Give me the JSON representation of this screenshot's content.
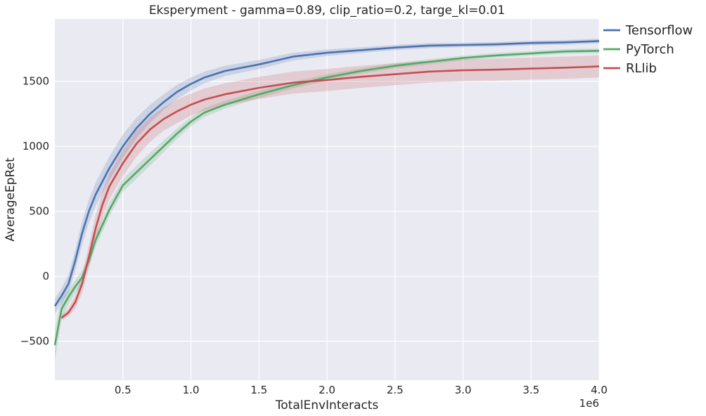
{
  "chart_data": {
    "type": "line",
    "title": "Eksperyment - gamma=0.89, clip_ratio=0.2, targe_kl=0.01",
    "xlabel": "TotalEnvInteracts",
    "ylabel": "AverageEpRet",
    "x_offset_label": "1e6",
    "xlim": [
      0,
      4.0
    ],
    "ylim": [
      -800,
      1980
    ],
    "x_ticks": [
      0.5,
      1.0,
      1.5,
      2.0,
      2.5,
      3.0,
      3.5,
      4.0
    ],
    "x_tick_labels": [
      "0.5",
      "1.0",
      "1.5",
      "2.0",
      "2.5",
      "3.0",
      "3.5",
      "4.0"
    ],
    "y_ticks": [
      -500,
      0,
      500,
      1000,
      1500
    ],
    "y_tick_labels": [
      "−500",
      "0",
      "500",
      "1000",
      "1500"
    ],
    "grid": true,
    "legend_position": "outside-top-right",
    "background_color": "#eaeaf2",
    "series": [
      {
        "name": "Tensorflow",
        "color": "#4c72b0",
        "x": [
          0,
          0.05,
          0.1,
          0.15,
          0.2,
          0.25,
          0.3,
          0.4,
          0.5,
          0.6,
          0.7,
          0.8,
          0.9,
          1.0,
          1.1,
          1.25,
          1.5,
          1.75,
          2.0,
          2.25,
          2.5,
          2.75,
          3.0,
          3.25,
          3.5,
          3.75,
          4.0
        ],
        "y": [
          -230,
          -150,
          -60,
          120,
          330,
          500,
          630,
          830,
          1000,
          1140,
          1250,
          1340,
          1420,
          1480,
          1530,
          1580,
          1630,
          1690,
          1720,
          1740,
          1760,
          1775,
          1780,
          1785,
          1795,
          1800,
          1810
        ],
        "band": [
          60,
          60,
          70,
          80,
          90,
          90,
          90,
          90,
          90,
          80,
          70,
          60,
          55,
          50,
          45,
          40,
          35,
          30,
          25,
          22,
          20,
          20,
          18,
          18,
          18,
          18,
          18
        ]
      },
      {
        "name": "PyTorch",
        "color": "#55a868",
        "x": [
          0,
          0.05,
          0.1,
          0.15,
          0.2,
          0.25,
          0.3,
          0.4,
          0.5,
          0.6,
          0.7,
          0.8,
          0.9,
          1.0,
          1.1,
          1.25,
          1.5,
          1.75,
          2.0,
          2.25,
          2.5,
          2.75,
          3.0,
          3.25,
          3.5,
          3.75,
          4.0
        ],
        "y": [
          -530,
          -250,
          -160,
          -80,
          -10,
          120,
          280,
          510,
          700,
          800,
          900,
          1000,
          1100,
          1190,
          1260,
          1320,
          1400,
          1470,
          1530,
          1580,
          1620,
          1650,
          1680,
          1700,
          1715,
          1730,
          1735
        ],
        "band": [
          120,
          80,
          60,
          50,
          50,
          50,
          50,
          50,
          50,
          50,
          50,
          45,
          40,
          35,
          35,
          30,
          30,
          25,
          25,
          20,
          20,
          20,
          18,
          18,
          18,
          18,
          18
        ]
      },
      {
        "name": "RLlib",
        "color": "#c44e52",
        "x": [
          0.05,
          0.1,
          0.15,
          0.2,
          0.25,
          0.3,
          0.35,
          0.4,
          0.5,
          0.6,
          0.7,
          0.8,
          0.9,
          1.0,
          1.1,
          1.25,
          1.5,
          1.75,
          2.0,
          2.25,
          2.5,
          2.75,
          3.0,
          3.25,
          3.5,
          3.75,
          4.0
        ],
        "y": [
          -320,
          -280,
          -200,
          -60,
          150,
          370,
          550,
          690,
          870,
          1020,
          1130,
          1210,
          1270,
          1320,
          1360,
          1400,
          1450,
          1490,
          1510,
          1535,
          1555,
          1575,
          1585,
          1590,
          1598,
          1605,
          1615
        ],
        "band": [
          20,
          30,
          50,
          70,
          90,
          100,
          100,
          100,
          100,
          100,
          95,
          90,
          90,
          85,
          85,
          85,
          85,
          85,
          85,
          85,
          85,
          85,
          85,
          85,
          85,
          85,
          85
        ]
      }
    ]
  }
}
